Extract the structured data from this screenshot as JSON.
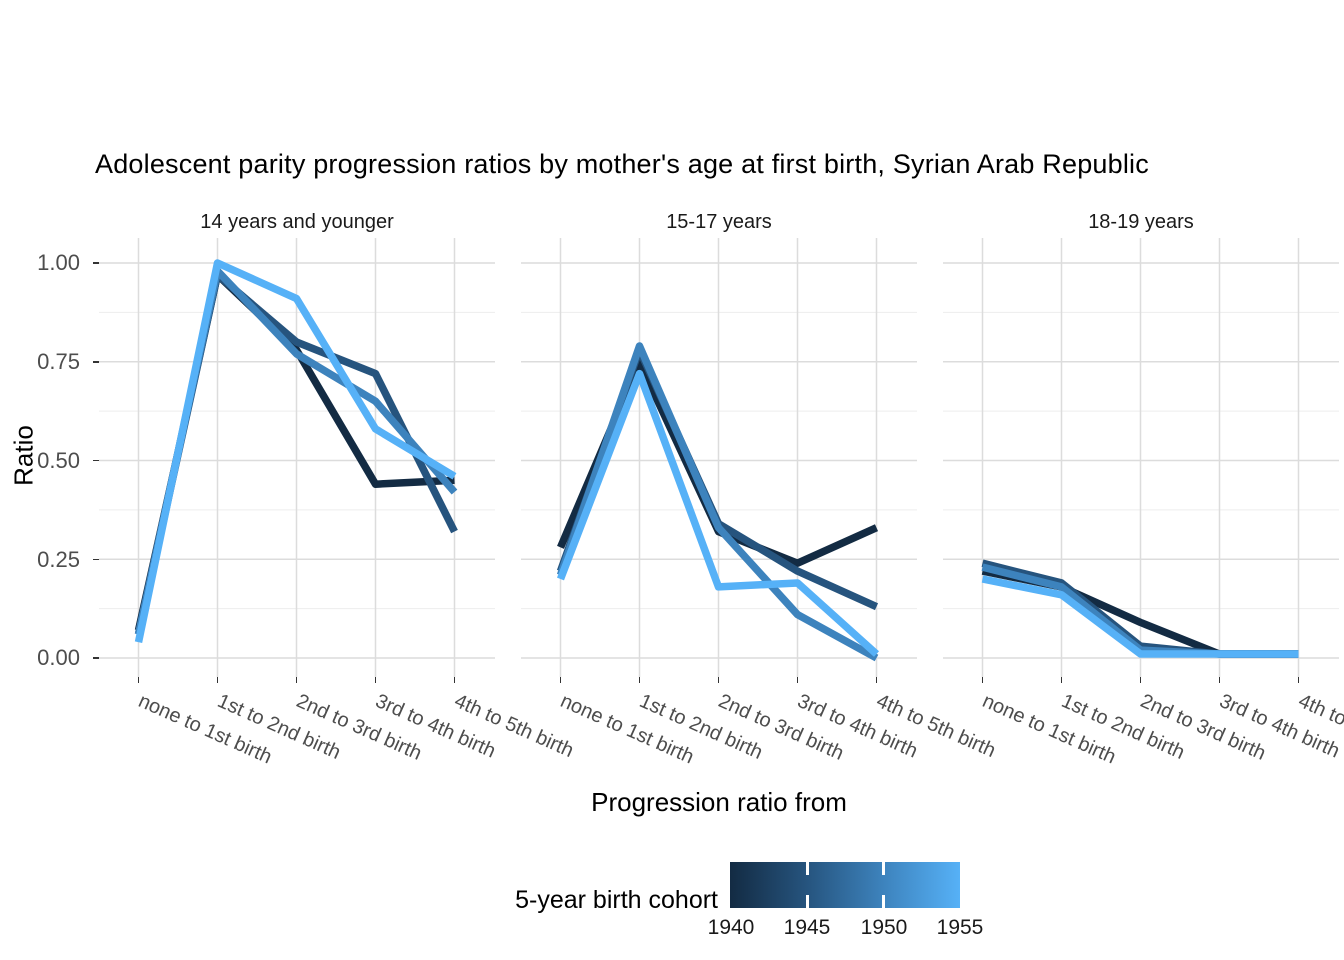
{
  "title": "Adolescent parity progression ratios by mother's age at first birth,  Syrian Arab Republic",
  "y_axis": {
    "label": "Ratio",
    "ticks": [
      "1.00",
      "0.75",
      "0.50",
      "0.25",
      "0.00"
    ],
    "tick_values": [
      1.0,
      0.75,
      0.5,
      0.25,
      0.0
    ]
  },
  "x_axis": {
    "label": "Progression ratio from"
  },
  "legend": {
    "title": "5-year birth cohort",
    "ticks": [
      "1940",
      "1945",
      "1950",
      "1955"
    ],
    "gradient": [
      "#132B43",
      "#26547E",
      "#3D83BD",
      "#56B1F7"
    ]
  },
  "colors": {
    "grid_major": "#DCDCDC",
    "grid_minor": "#EDEDED",
    "axis_tick": "#333333"
  },
  "chart_data": {
    "type": "line",
    "categories": [
      "none to 1st birth",
      "1st to 2nd birth",
      "2nd to 3rd birth",
      "3rd to 4th birth",
      "4th to 5th birth"
    ],
    "ylim": [
      0,
      1
    ],
    "grid": "on",
    "legend_position": "bottom",
    "facets": [
      {
        "label": "14 years and younger",
        "series": [
          {
            "name": "1940",
            "color": "#132B43",
            "values": [
              0.07,
              0.97,
              0.78,
              0.44,
              0.45
            ]
          },
          {
            "name": "1945",
            "color": "#26547E",
            "values": [
              0.06,
              0.97,
              0.8,
              0.72,
              0.32
            ]
          },
          {
            "name": "1950",
            "color": "#3D83BD",
            "values": [
              0.06,
              0.98,
              0.77,
              0.65,
              0.42
            ]
          },
          {
            "name": "1955",
            "color": "#56B1F7",
            "values": [
              0.04,
              1.0,
              0.91,
              0.58,
              0.46
            ]
          }
        ]
      },
      {
        "label": "15-17 years",
        "series": [
          {
            "name": "1940",
            "color": "#132B43",
            "values": [
              0.28,
              0.75,
              0.32,
              0.24,
              0.33
            ]
          },
          {
            "name": "1945",
            "color": "#26547E",
            "values": [
              0.22,
              0.78,
              0.34,
              0.22,
              0.13
            ]
          },
          {
            "name": "1950",
            "color": "#3D83BD",
            "values": [
              0.21,
              0.79,
              0.33,
              0.11,
              0.0
            ]
          },
          {
            "name": "1955",
            "color": "#56B1F7",
            "values": [
              0.2,
              0.72,
              0.18,
              0.19,
              0.01
            ]
          }
        ]
      },
      {
        "label": "18-19 years",
        "series": [
          {
            "name": "1940",
            "color": "#132B43",
            "values": [
              0.22,
              0.18,
              0.09,
              0.01,
              0.01
            ]
          },
          {
            "name": "1945",
            "color": "#26547E",
            "values": [
              0.24,
              0.19,
              0.03,
              0.01,
              0.01
            ]
          },
          {
            "name": "1950",
            "color": "#3D83BD",
            "values": [
              0.23,
              0.18,
              0.02,
              0.01,
              0.01
            ]
          },
          {
            "name": "1955",
            "color": "#56B1F7",
            "values": [
              0.2,
              0.16,
              0.01,
              0.01,
              0.01
            ]
          }
        ]
      }
    ]
  }
}
